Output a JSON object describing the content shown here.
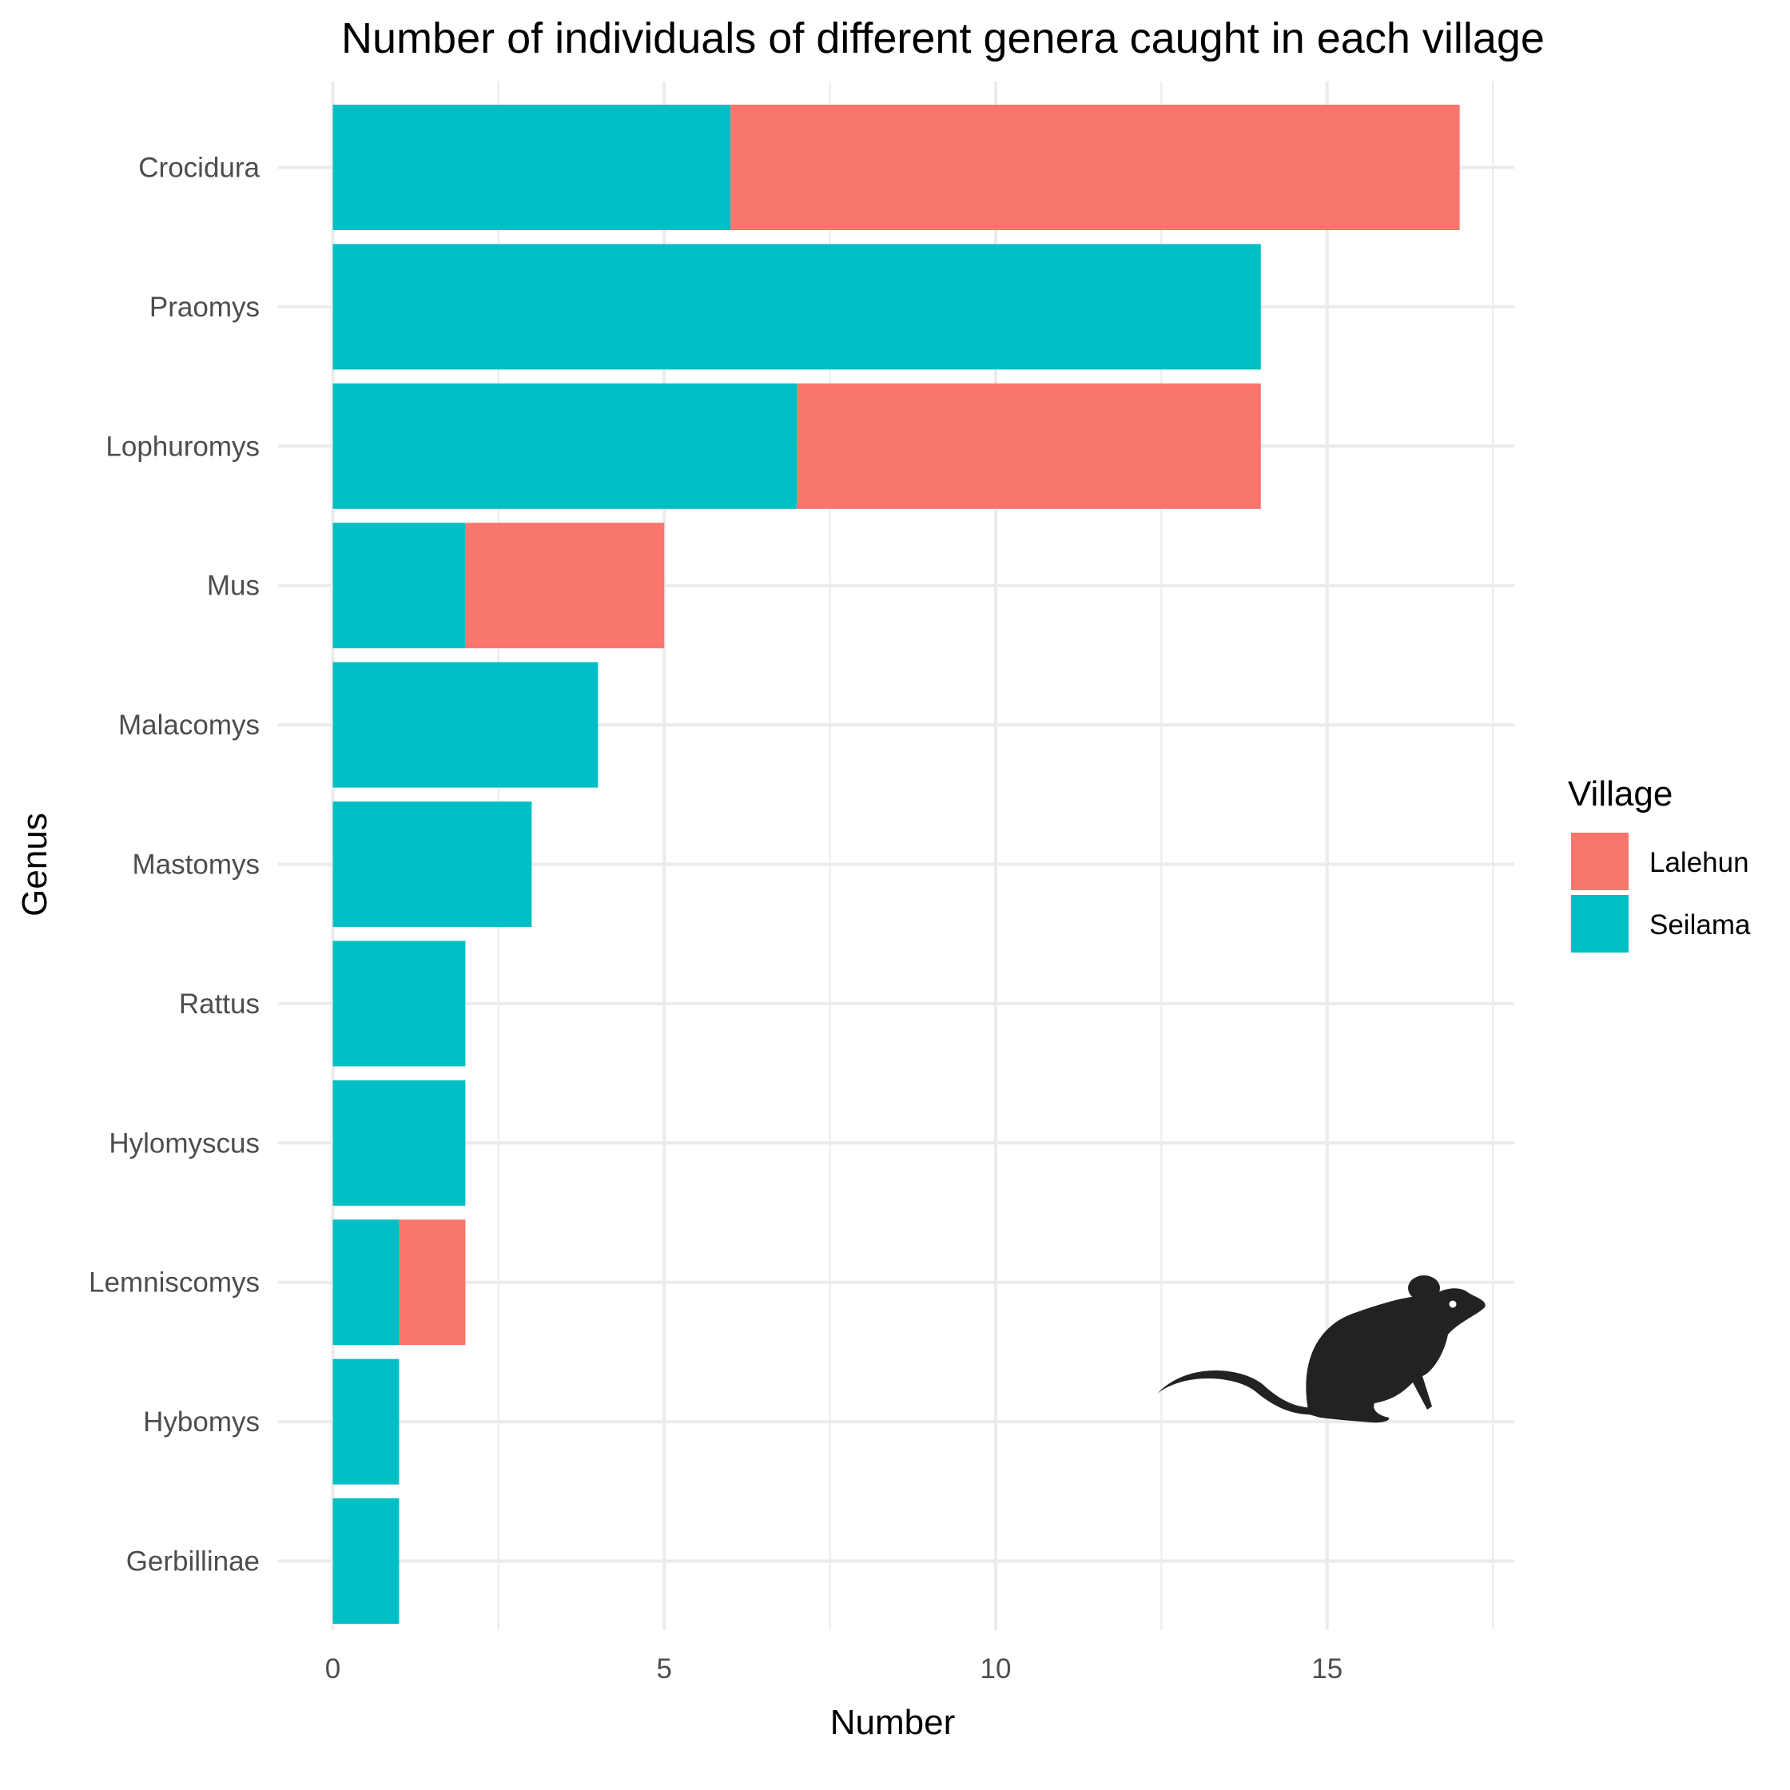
{
  "chart_data": {
    "type": "bar",
    "orientation": "horizontal",
    "stacked": true,
    "title": "Number of individuals of different genera caught in each village",
    "xlabel": "Number",
    "ylabel": "Genus",
    "xlim": [
      0,
      17.8
    ],
    "x_ticks": [
      0,
      5,
      10,
      15
    ],
    "x_tick_labels": [
      "0",
      "5",
      "10",
      "15"
    ],
    "grid": true,
    "legend_position": "right",
    "legend_title": "Village",
    "categories": [
      "Crocidura",
      "Praomys",
      "Lophuromys",
      "Mus",
      "Malacomys",
      "Mastomys",
      "Rattus",
      "Hylomyscus",
      "Lemniscomys",
      "Hybomys",
      "Gerbillinae"
    ],
    "series": [
      {
        "name": "Seilama",
        "color": "#00BFC4",
        "values": [
          6,
          14,
          7,
          2,
          4,
          3,
          2,
          2,
          1,
          1,
          1
        ]
      },
      {
        "name": "Lalehun",
        "color": "#F8766D",
        "values": [
          11,
          0,
          7,
          3,
          0,
          0,
          0,
          0,
          1,
          0,
          0
        ]
      }
    ],
    "legend_order": [
      "Lalehun",
      "Seilama"
    ],
    "decoration": {
      "icon": "mouse-silhouette-icon",
      "color": "#222222"
    }
  }
}
